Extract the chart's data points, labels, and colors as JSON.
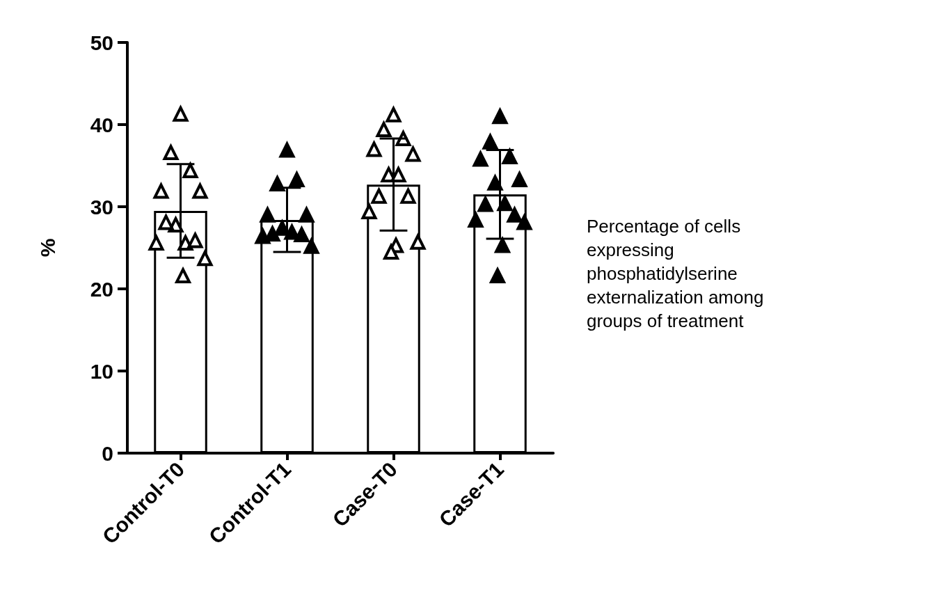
{
  "chart_data": {
    "type": "bar",
    "ylabel": "%",
    "categories": [
      "Control-T0",
      "Control-T1",
      "Case-T0",
      "Case-T1"
    ],
    "ylim": [
      0,
      50
    ],
    "yticks": [
      0,
      10,
      20,
      30,
      40,
      50
    ],
    "grid": false,
    "marker": "triangle",
    "series": [
      {
        "color": "#000000",
        "values": [
          29.5,
          28.4,
          32.7,
          31.5
        ],
        "errors": [
          5.7,
          3.9,
          5.6,
          5.4
        ]
      },
      {
        "type": "scatter",
        "color": "#ffffff",
        "x": [
          "Control-T0",
          "Control-T0",
          "Control-T0",
          "Control-T0",
          "Control-T0",
          "Control-T0",
          "Control-T0",
          "Control-T0",
          "Control-T0",
          "Control-T0",
          "Control-T0",
          "Control-T0",
          "Case-T0",
          "Case-T0",
          "Case-T0",
          "Case-T0",
          "Case-T0",
          "Case-T0",
          "Case-T0",
          "Case-T0",
          "Case-T0",
          "Case-T0",
          "Case-T0",
          "Case-T0",
          "Case-T0"
        ],
        "values": [
          41.3,
          36.6,
          34.4,
          31.9,
          31.9,
          27.8,
          25.6,
          28.1,
          25.9,
          25.6,
          23.7,
          21.6,
          41.2,
          39.4,
          38.3,
          37.0,
          36.4,
          33.9,
          33.9,
          31.3,
          31.3,
          29.4,
          25.7,
          25.3,
          24.5
        ]
      },
      {
        "type": "scatter",
        "color": "#000000",
        "x": [
          "Control-T1",
          "Control-T1",
          "Control-T1",
          "Control-T1",
          "Control-T1",
          "Control-T1",
          "Control-T1",
          "Control-T1",
          "Control-T1",
          "Control-T1",
          "Control-T1",
          "Case-T1",
          "Case-T1",
          "Case-T1",
          "Case-T1",
          "Case-T1",
          "Case-T1",
          "Case-T1",
          "Case-T1",
          "Case-T1",
          "Case-T1",
          "Case-T1",
          "Case-T1",
          "Case-T1"
        ],
        "values": [
          36.9,
          32.8,
          33.3,
          29.0,
          29.0,
          27.4,
          26.9,
          26.7,
          26.6,
          26.4,
          25.2,
          41.0,
          37.9,
          36.1,
          35.8,
          33.3,
          32.9,
          30.4,
          30.3,
          29.0,
          28.4,
          28.1,
          25.3,
          21.6
        ]
      }
    ],
    "annotations": [
      "Percentage of cells expressing phosphatidylserine externalization among groups of treatment"
    ]
  }
}
